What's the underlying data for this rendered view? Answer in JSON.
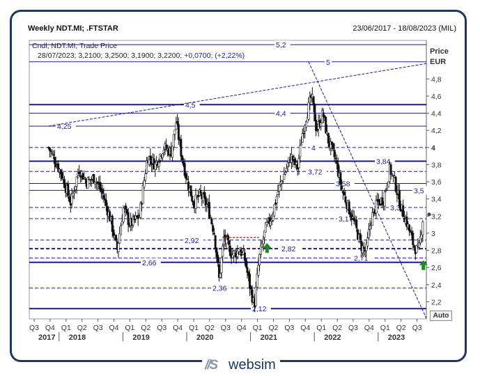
{
  "header": {
    "title": "Weekly NDT.MI; .FTSTAR",
    "date_range": "23/06/2017 - 18/08/2023 (MIL)",
    "legend_line": "Cndl; NDT.MI; Trade Price",
    "last_bar": "28/07/2023; 3,2100; 3,2500; 3,1900; 3,2200;",
    "last_change": "+0,0700; (+2,22%)"
  },
  "price_axis": {
    "label_price": "Price",
    "label_currency": "EUR"
  },
  "auto_button": "Auto",
  "brand": {
    "mark": "//S",
    "name": "websim"
  },
  "colors": {
    "candle": "#111111",
    "level": "#1a1a8c",
    "trend": "#1a1a8c",
    "arrow": "#1e8a1e",
    "highlight": "#e02020"
  },
  "chart_data": {
    "type": "candlestick",
    "title": "Weekly NDT.MI; .FTSTAR",
    "ylim": [
      2.0,
      5.25
    ],
    "y_ticks": [
      "2,2",
      "2,4",
      "2,6",
      "2,8",
      "3",
      "3,2",
      "3,4",
      "3,6",
      "3,8",
      "4",
      "4,2",
      "4,4",
      "4,6",
      "4,8"
    ],
    "x_quarters": [
      "Q3",
      "Q4",
      "Q1",
      "Q2",
      "Q3",
      "Q4",
      "Q1",
      "Q2",
      "Q3",
      "Q4",
      "Q1",
      "Q2",
      "Q3",
      "Q4",
      "Q1",
      "Q2",
      "Q3",
      "Q4",
      "Q1",
      "Q2",
      "Q3",
      "Q4",
      "Q1",
      "Q2",
      "Q3"
    ],
    "x_years": [
      "2017",
      "2018",
      "2019",
      "2020",
      "2021",
      "2022",
      "2023"
    ],
    "year_start_quarter_index": [
      0,
      2,
      6,
      10,
      14,
      18,
      22
    ],
    "levels": [
      {
        "value": 5.2,
        "label": "5,2",
        "style": "solid"
      },
      {
        "value": 5.0,
        "label": "5",
        "style": "solid"
      },
      {
        "value": 4.5,
        "label": "4,5",
        "style": "solid-bold"
      },
      {
        "value": 4.4,
        "label": "4,4",
        "style": "solid"
      },
      {
        "value": 4.25,
        "label": "4,25",
        "style": "solid"
      },
      {
        "value": 4.0,
        "label": "4",
        "style": "dashed"
      },
      {
        "value": 3.84,
        "label": "3,84",
        "style": "solid-bold"
      },
      {
        "value": 3.72,
        "label": "3,72",
        "style": "dashed"
      },
      {
        "value": 3.58,
        "label": "3,58",
        "style": "solid"
      },
      {
        "value": 3.5,
        "label": "3,5",
        "style": "solid"
      },
      {
        "value": 3.3,
        "label": "3,3",
        "style": "dashed"
      },
      {
        "value": 3.17,
        "label": "3,17",
        "style": "dashed"
      },
      {
        "value": 2.92,
        "label": "2,92",
        "style": "dashed"
      },
      {
        "value": 2.82,
        "label": "2,82",
        "style": "dashed-bold"
      },
      {
        "value": 2.71,
        "label": "2,71",
        "style": "dashed"
      },
      {
        "value": 2.66,
        "label": "2,66",
        "style": "solid-bold"
      },
      {
        "value": 2.36,
        "label": "2,36",
        "style": "dashed"
      },
      {
        "value": 2.12,
        "label": "2,12",
        "style": "solid-bold"
      }
    ],
    "trend_lines": [
      {
        "from": {
          "q": 0.9,
          "v": 4.25
        },
        "to": {
          "q": 24.6,
          "v": 4.98
        },
        "style": "dashed"
      },
      {
        "from": {
          "q": 17.2,
          "v": 5.0
        },
        "to": {
          "q": 24.6,
          "v": 2.0
        },
        "style": "dashed"
      }
    ],
    "resistance_mark": {
      "from_q": 11.8,
      "to_q": 14.1,
      "value": 2.95
    },
    "signal_arrows": [
      {
        "q": 14.6,
        "v": 2.82
      },
      {
        "q": 24.4,
        "v": 2.62
      }
    ],
    "last_close": 3.22,
    "close_path": [
      [
        0.9,
        4.0
      ],
      [
        1.3,
        3.85
      ],
      [
        1.7,
        3.7
      ],
      [
        2.3,
        3.35
      ],
      [
        2.8,
        3.75
      ],
      [
        3.3,
        3.6
      ],
      [
        3.8,
        3.65
      ],
      [
        4.3,
        3.45
      ],
      [
        4.8,
        3.15
      ],
      [
        5.2,
        2.8
      ],
      [
        5.6,
        3.3
      ],
      [
        6.0,
        3.1
      ],
      [
        6.6,
        3.2
      ],
      [
        7.1,
        3.9
      ],
      [
        7.6,
        3.8
      ],
      [
        8.1,
        4.0
      ],
      [
        8.6,
        3.95
      ],
      [
        8.9,
        4.3
      ],
      [
        9.2,
        3.95
      ],
      [
        9.6,
        3.6
      ],
      [
        10.0,
        3.35
      ],
      [
        10.4,
        3.45
      ],
      [
        10.9,
        3.3
      ],
      [
        11.3,
        3.0
      ],
      [
        11.6,
        2.45
      ],
      [
        11.9,
        2.95
      ],
      [
        12.4,
        2.75
      ],
      [
        12.9,
        2.8
      ],
      [
        13.2,
        2.7
      ],
      [
        13.5,
        2.4
      ],
      [
        13.8,
        2.15
      ],
      [
        14.1,
        2.7
      ],
      [
        14.5,
        3.05
      ],
      [
        14.9,
        3.2
      ],
      [
        15.3,
        3.5
      ],
      [
        15.7,
        3.7
      ],
      [
        16.1,
        3.9
      ],
      [
        16.5,
        3.75
      ],
      [
        16.8,
        4.15
      ],
      [
        17.1,
        4.4
      ],
      [
        17.4,
        4.6
      ],
      [
        17.7,
        4.2
      ],
      [
        18.1,
        4.4
      ],
      [
        18.4,
        4.1
      ],
      [
        18.9,
        3.85
      ],
      [
        19.3,
        3.5
      ],
      [
        19.7,
        3.3
      ],
      [
        20.1,
        3.1
      ],
      [
        20.5,
        2.85
      ],
      [
        20.8,
        2.78
      ],
      [
        21.1,
        3.15
      ],
      [
        21.5,
        3.35
      ],
      [
        21.9,
        3.4
      ],
      [
        22.3,
        3.75
      ],
      [
        22.6,
        3.6
      ],
      [
        23.0,
        3.3
      ],
      [
        23.4,
        3.1
      ],
      [
        23.8,
        2.85
      ],
      [
        24.1,
        2.78
      ],
      [
        24.4,
        3.22
      ]
    ]
  }
}
